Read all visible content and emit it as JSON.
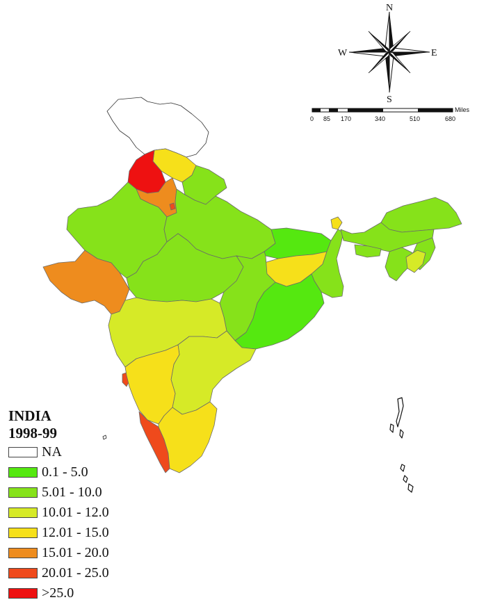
{
  "legend": {
    "title": "INDIA",
    "subtitle": "1998-99",
    "items": [
      {
        "label": "NA",
        "color": "#ffffff"
      },
      {
        "label": "0.1 - 5.0",
        "color": "#55e810"
      },
      {
        "label": "5.01 - 10.0",
        "color": "#86e21a"
      },
      {
        "label": "10.01 - 12.0",
        "color": "#d6ea27"
      },
      {
        "label": "12.01 - 15.0",
        "color": "#f6e01a"
      },
      {
        "label": "15.01 - 20.0",
        "color": "#ee8c1e"
      },
      {
        "label": "20.01 - 25.0",
        "color": "#ef4a1c"
      },
      {
        "label": ">25.0",
        "color": "#ee1111"
      }
    ]
  },
  "compass": {
    "north": "N",
    "south": "S",
    "east": "E",
    "west": "W"
  },
  "scale": {
    "unit": "Miles",
    "ticks": [
      "0",
      "85",
      "170",
      "340",
      "510",
      "680"
    ]
  }
}
